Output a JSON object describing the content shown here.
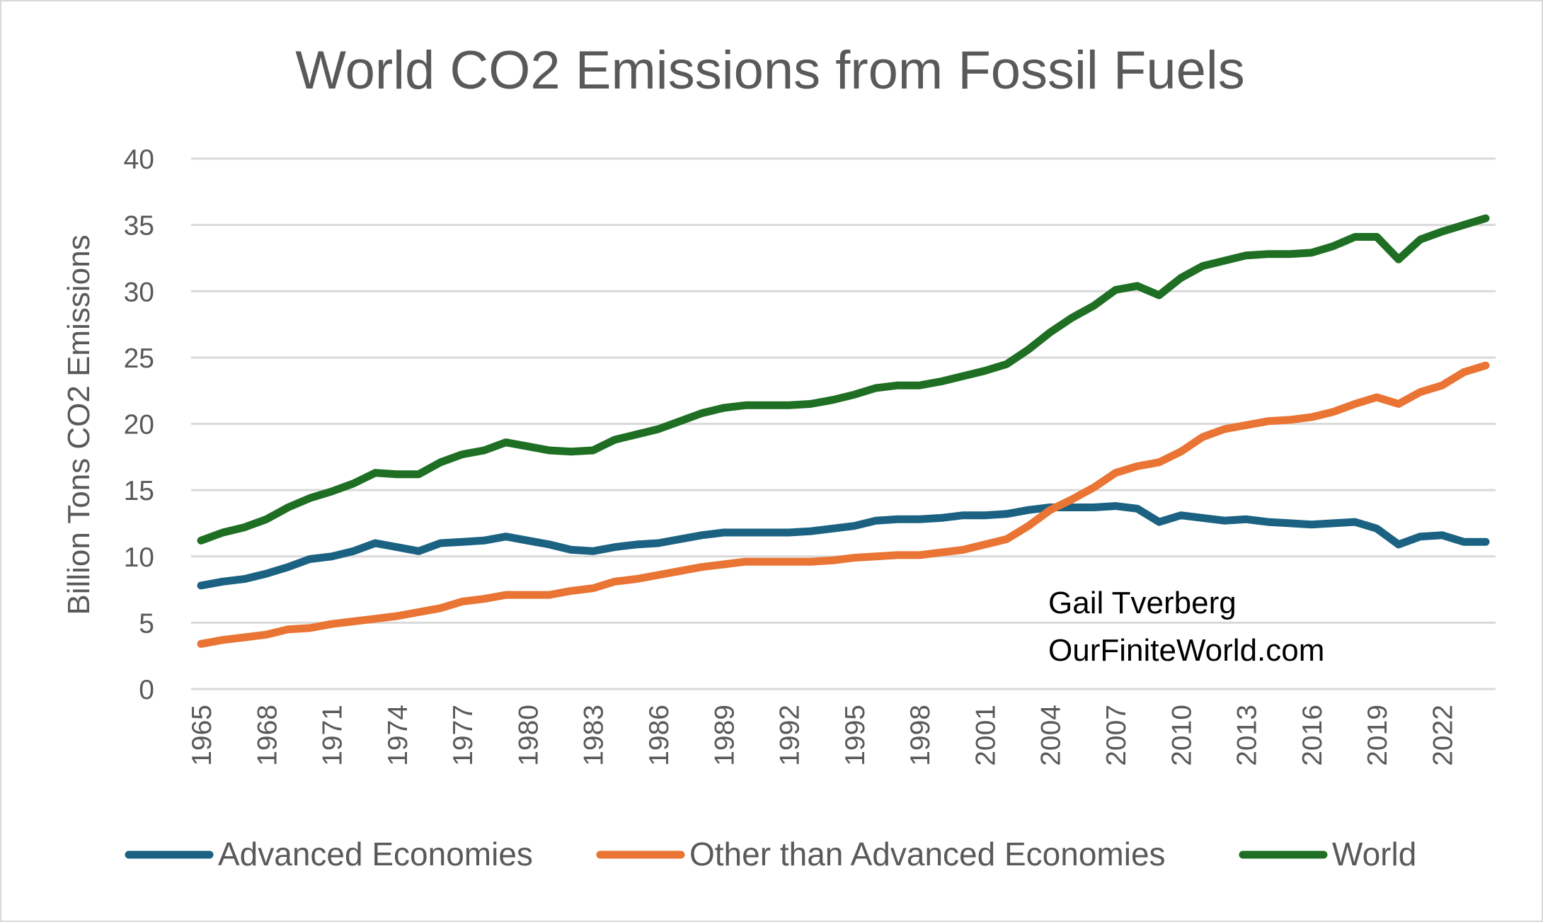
{
  "chart_data": {
    "type": "line",
    "title": "World CO2 Emissions from Fossil Fuels",
    "xlabel": "",
    "ylabel": "Billion Tons CO2 Emissions",
    "ylim": [
      0,
      40
    ],
    "yticks": [
      "0",
      "5",
      "10",
      "15",
      "20",
      "25",
      "30",
      "35",
      "40"
    ],
    "ytick_values": [
      0,
      5,
      10,
      15,
      20,
      25,
      30,
      35,
      40
    ],
    "xlim": [
      1965,
      2024
    ],
    "xticks": [
      "1965",
      "1968",
      "1971",
      "1974",
      "1977",
      "1980",
      "1983",
      "1986",
      "1989",
      "1992",
      "1995",
      "1998",
      "2001",
      "2004",
      "2007",
      "2010",
      "2013",
      "2016",
      "2019",
      "2022"
    ],
    "grid": true,
    "legend_position": "bottom",
    "x_start": 1965,
    "series": [
      {
        "name": "Advanced Economies",
        "color": "#1b6282",
        "values": [
          7.8,
          8.1,
          8.3,
          8.7,
          9.2,
          9.8,
          10.0,
          10.4,
          11.0,
          10.7,
          10.4,
          11.0,
          11.1,
          11.2,
          11.5,
          11.2,
          10.9,
          10.5,
          10.4,
          10.7,
          10.9,
          11.0,
          11.3,
          11.6,
          11.8,
          11.8,
          11.8,
          11.8,
          11.9,
          12.1,
          12.3,
          12.7,
          12.8,
          12.8,
          12.9,
          13.1,
          13.1,
          13.2,
          13.5,
          13.7,
          13.7,
          13.7,
          13.8,
          13.6,
          12.6,
          13.1,
          12.9,
          12.7,
          12.8,
          12.6,
          12.5,
          12.4,
          12.5,
          12.6,
          12.1,
          10.9,
          11.5,
          11.6,
          11.1,
          11.1
        ]
      },
      {
        "name": "Other than Advanced Economies",
        "color": "#e97433",
        "values": [
          3.4,
          3.7,
          3.9,
          4.1,
          4.5,
          4.6,
          4.9,
          5.1,
          5.3,
          5.5,
          5.8,
          6.1,
          6.6,
          6.8,
          7.1,
          7.1,
          7.1,
          7.4,
          7.6,
          8.1,
          8.3,
          8.6,
          8.9,
          9.2,
          9.4,
          9.6,
          9.6,
          9.6,
          9.6,
          9.7,
          9.9,
          10.0,
          10.1,
          10.1,
          10.3,
          10.5,
          10.9,
          11.3,
          12.3,
          13.5,
          14.3,
          15.2,
          16.3,
          16.8,
          17.1,
          17.9,
          19.0,
          19.6,
          19.9,
          20.2,
          20.3,
          20.5,
          20.9,
          21.5,
          22.0,
          21.5,
          22.4,
          22.9,
          23.9,
          24.4
        ]
      },
      {
        "name": "World",
        "color": "#1e6f23",
        "values": [
          11.2,
          11.8,
          12.2,
          12.8,
          13.7,
          14.4,
          14.9,
          15.5,
          16.3,
          16.2,
          16.2,
          17.1,
          17.7,
          18.0,
          18.6,
          18.3,
          18.0,
          17.9,
          18.0,
          18.8,
          19.2,
          19.6,
          20.2,
          20.8,
          21.2,
          21.4,
          21.4,
          21.4,
          21.5,
          21.8,
          22.2,
          22.7,
          22.9,
          22.9,
          23.2,
          23.6,
          24.0,
          24.5,
          25.6,
          26.9,
          28.0,
          28.9,
          30.1,
          30.4,
          29.7,
          31.0,
          31.9,
          32.3,
          32.7,
          32.8,
          32.8,
          32.9,
          33.4,
          34.1,
          34.1,
          32.4,
          33.9,
          34.5,
          35.0,
          35.5
        ]
      }
    ],
    "annotations": [
      "Gail Tverberg",
      "OurFiniteWorld.com"
    ]
  }
}
